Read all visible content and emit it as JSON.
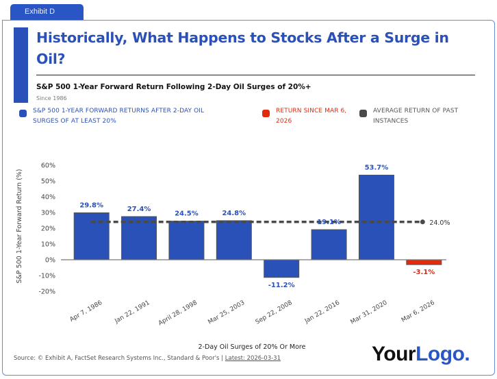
{
  "tab": {
    "label": "Exhibit D"
  },
  "header": {
    "title": "Historically, What Happens to Stocks After a Surge in Oil?",
    "subtitle": "S&P 500 1-Year Forward Return Following 2-Day Oil Surges of 20%+",
    "since": "Since 1986"
  },
  "legend": [
    {
      "label": "S&P 500 1-YEAR FORWARD RETURNS AFTER 2-DAY OIL SURGES OF AT LEAST 20%",
      "color": "#2a51b8",
      "text_color": "#2a51b8"
    },
    {
      "label": "RETURN SINCE MAR 6, 2026",
      "color": "#e02b0f",
      "text_color": "#e02b0f"
    },
    {
      "label": "AVERAGE RETURN OF PAST INSTANCES",
      "color": "#4a4a4a",
      "text_color": "#555555"
    }
  ],
  "chart_data": {
    "type": "bar",
    "title": "S&P 500 1-Year Forward Return Following 2-Day Oil Surges of 20%+",
    "xlabel": "2-Day Oil Surges of 20% Or More",
    "ylabel": "S&P 500 1-Year Forward Return (%)",
    "ylim": [
      -20,
      60
    ],
    "yticks": [
      -20,
      -10,
      0,
      10,
      20,
      30,
      40,
      50,
      60
    ],
    "ytick_labels": [
      "-20%",
      "-10%",
      "0%",
      "10%",
      "20%",
      "30%",
      "40%",
      "50%",
      "60%"
    ],
    "grid": false,
    "categories": [
      "Apr 7, 1986",
      "Jan 22, 1991",
      "April 28, 1998",
      "Mar 25, 2003",
      "Sep 22, 2008",
      "Jan 22, 2016",
      "Mar 31, 2020",
      "Mar 6, 2026"
    ],
    "series": [
      {
        "name": "S&P 500 1-Year Forward Returns After 2-Day Oil Surges of at Least 20%",
        "values": [
          29.8,
          27.4,
          24.5,
          24.8,
          -11.2,
          19.1,
          53.7,
          null
        ],
        "color": "#2a51b8"
      },
      {
        "name": "Return Since Mar 6, 2026",
        "values": [
          null,
          null,
          null,
          null,
          null,
          null,
          null,
          -3.1
        ],
        "color": "#e02b0f"
      }
    ],
    "data_labels": [
      "29.8%",
      "27.4%",
      "24.5%",
      "24.8%",
      "-11.2%",
      "19.1%",
      "53.7%",
      "-3.1%"
    ],
    "average_line": {
      "name": "Average Return of Past Instances",
      "value": 24.0,
      "label": "24.0%",
      "color": "#4a4a4a"
    }
  },
  "footer": {
    "source": "Source: © Exhibit A, FactSet Research Systems Inc., Standard & Poor's | ",
    "latest": "Latest: 2026-03-31"
  },
  "logo": {
    "part1": "Your",
    "part2": "Logo."
  }
}
